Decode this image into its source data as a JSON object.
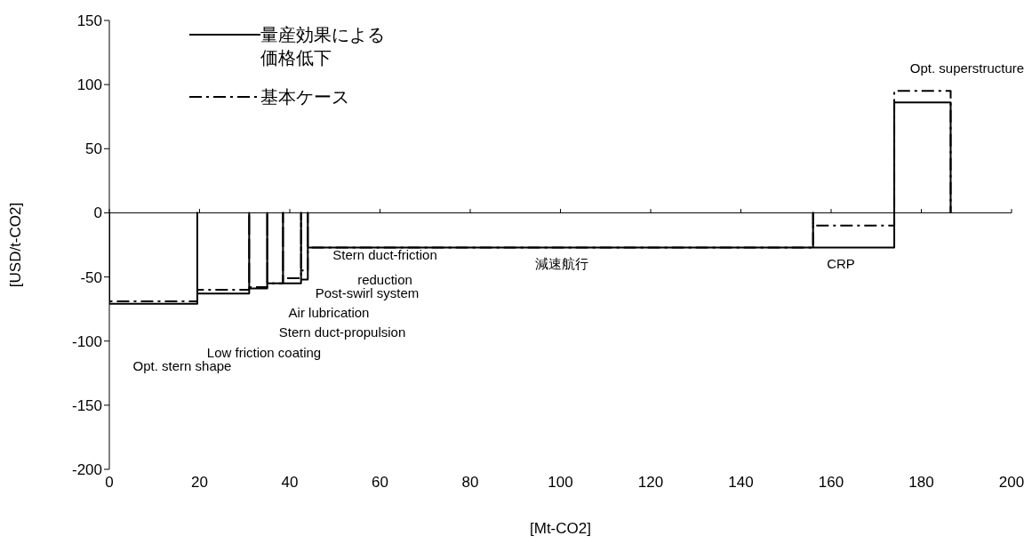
{
  "chart_data": {
    "type": "line",
    "xlabel": "[Mt-CO2]",
    "ylabel": "[USD/t-CO2]",
    "xlim": [
      0,
      200
    ],
    "xticks": [
      0,
      20,
      40,
      60,
      80,
      100,
      120,
      140,
      160,
      180,
      200
    ],
    "ylim": [
      -200,
      150
    ],
    "yticks": [
      -200,
      -150,
      -100,
      -50,
      0,
      50,
      100,
      150
    ],
    "legend": "top left",
    "ref_lines": [
      {
        "axis": "y",
        "value": 0,
        "color": "#000000"
      }
    ],
    "series": [
      {
        "name": "量産効果による価格低下",
        "color": "#000000",
        "line_style": "solid",
        "x": [
          0,
          0,
          19.5,
          19.5,
          19.5,
          31,
          31,
          31,
          35,
          35,
          35,
          38.5,
          38.5,
          38.5,
          42.5,
          42.5,
          42.5,
          44,
          44,
          44,
          156,
          156,
          156,
          174,
          174,
          174,
          186.5,
          186.5
        ],
        "values": [
          0,
          -71,
          -71,
          0,
          -63,
          -63,
          0,
          -59,
          -59,
          0,
          -55,
          -55,
          0,
          -55,
          -55,
          0,
          -52,
          -52,
          0,
          -27,
          -27,
          0,
          -27,
          -27,
          0,
          86,
          86,
          0
        ]
      },
      {
        "name": "基本ケース",
        "color": "#000000",
        "line_style": "dashed",
        "x": [
          0,
          0,
          19.5,
          19.5,
          19.5,
          31,
          31,
          31,
          35,
          35,
          35,
          38.5,
          38.5,
          38.5,
          42.5,
          42.5,
          42.5,
          44,
          44,
          44,
          156,
          156,
          156,
          174,
          174,
          174,
          186.5,
          186.5
        ],
        "values": [
          0,
          -69,
          -69,
          0,
          -60,
          -60,
          0,
          -58,
          -58,
          0,
          -55,
          -55,
          0,
          -51,
          -51,
          0,
          -45,
          -45,
          0,
          -27,
          -27,
          0,
          -10,
          -10,
          0,
          95,
          95,
          0
        ]
      }
    ],
    "annotations": [
      "Opt. stern shape",
      "Low friction coating",
      "Stern duct-propulsion",
      "Air lubrication",
      "Post-swirl system",
      "Stern duct-friction\nreduction",
      "減速航行",
      "CRP",
      "Opt. superstructure"
    ]
  }
}
